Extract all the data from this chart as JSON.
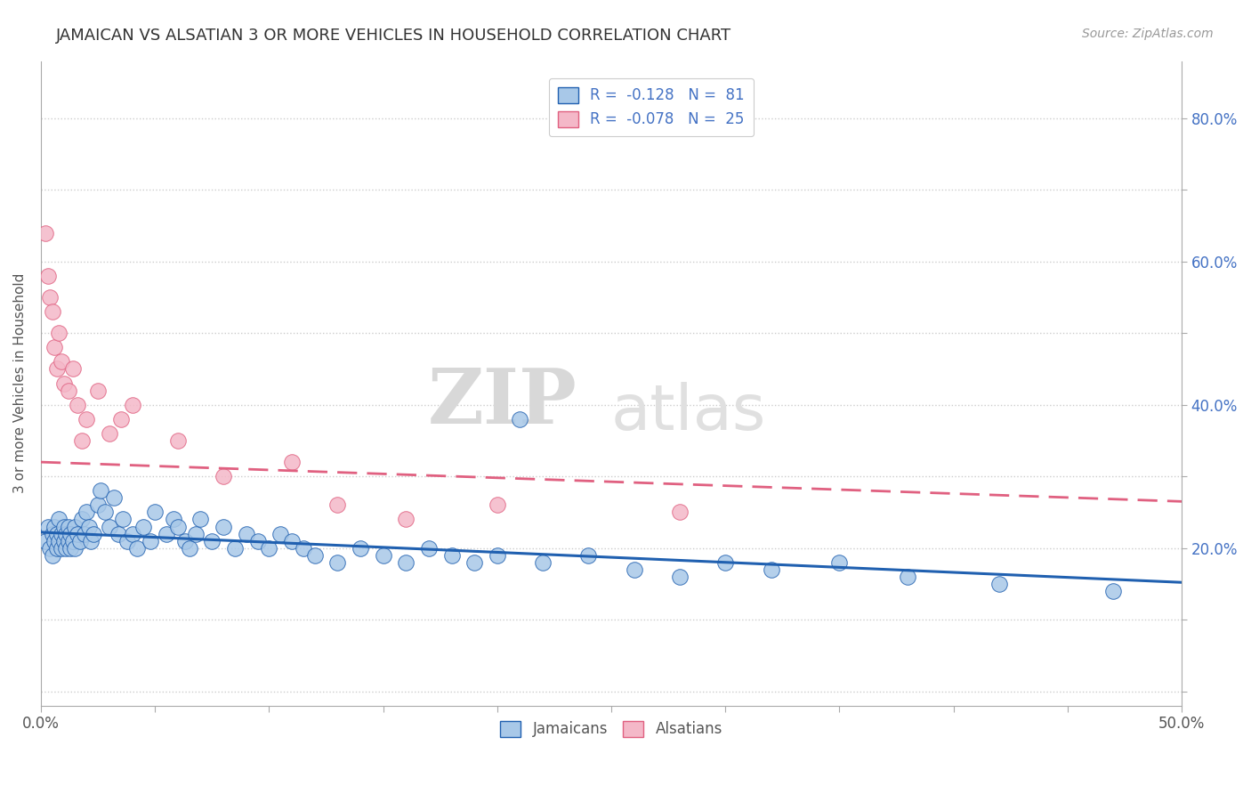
{
  "title": "JAMAICAN VS ALSATIAN 3 OR MORE VEHICLES IN HOUSEHOLD CORRELATION CHART",
  "source": "Source: ZipAtlas.com",
  "ylabel": "3 or more Vehicles in Household",
  "xlim": [
    0.0,
    0.5
  ],
  "ylim": [
    -0.02,
    0.88
  ],
  "xticks": [
    0.0,
    0.05,
    0.1,
    0.15,
    0.2,
    0.25,
    0.3,
    0.35,
    0.4,
    0.45,
    0.5
  ],
  "xticklabels": [
    "0.0%",
    "",
    "",
    "",
    "",
    "",
    "",
    "",
    "",
    "",
    "50.0%"
  ],
  "yticks": [
    0.0,
    0.1,
    0.2,
    0.3,
    0.4,
    0.5,
    0.6,
    0.7,
    0.8
  ],
  "yticklabels_right": [
    "",
    "",
    "20.0%",
    "",
    "40.0%",
    "",
    "60.0%",
    "",
    "80.0%"
  ],
  "blue_color": "#a8c8e8",
  "pink_color": "#f4b8c8",
  "blue_line_color": "#2060b0",
  "pink_line_color": "#e06080",
  "legend_text_color": "#4472c4",
  "watermark_zip": "ZIP",
  "watermark_atlas": "atlas",
  "jamaican_x": [
    0.002,
    0.003,
    0.004,
    0.005,
    0.005,
    0.006,
    0.006,
    0.007,
    0.007,
    0.008,
    0.008,
    0.009,
    0.009,
    0.01,
    0.01,
    0.011,
    0.011,
    0.012,
    0.012,
    0.013,
    0.013,
    0.014,
    0.015,
    0.015,
    0.016,
    0.017,
    0.018,
    0.019,
    0.02,
    0.021,
    0.022,
    0.023,
    0.025,
    0.026,
    0.028,
    0.03,
    0.032,
    0.034,
    0.036,
    0.038,
    0.04,
    0.042,
    0.045,
    0.048,
    0.05,
    0.055,
    0.058,
    0.06,
    0.063,
    0.065,
    0.068,
    0.07,
    0.075,
    0.08,
    0.085,
    0.09,
    0.095,
    0.1,
    0.105,
    0.11,
    0.115,
    0.12,
    0.13,
    0.14,
    0.15,
    0.16,
    0.17,
    0.18,
    0.19,
    0.2,
    0.21,
    0.22,
    0.24,
    0.26,
    0.28,
    0.3,
    0.32,
    0.35,
    0.38,
    0.42,
    0.47
  ],
  "jamaican_y": [
    0.21,
    0.23,
    0.2,
    0.22,
    0.19,
    0.21,
    0.23,
    0.2,
    0.22,
    0.21,
    0.24,
    0.2,
    0.22,
    0.23,
    0.21,
    0.2,
    0.22,
    0.21,
    0.23,
    0.2,
    0.22,
    0.21,
    0.23,
    0.2,
    0.22,
    0.21,
    0.24,
    0.22,
    0.25,
    0.23,
    0.21,
    0.22,
    0.26,
    0.28,
    0.25,
    0.23,
    0.27,
    0.22,
    0.24,
    0.21,
    0.22,
    0.2,
    0.23,
    0.21,
    0.25,
    0.22,
    0.24,
    0.23,
    0.21,
    0.2,
    0.22,
    0.24,
    0.21,
    0.23,
    0.2,
    0.22,
    0.21,
    0.2,
    0.22,
    0.21,
    0.2,
    0.19,
    0.18,
    0.2,
    0.19,
    0.18,
    0.2,
    0.19,
    0.18,
    0.19,
    0.38,
    0.18,
    0.19,
    0.17,
    0.16,
    0.18,
    0.17,
    0.18,
    0.16,
    0.15,
    0.14
  ],
  "alsatian_x": [
    0.002,
    0.003,
    0.004,
    0.005,
    0.006,
    0.007,
    0.008,
    0.009,
    0.01,
    0.012,
    0.014,
    0.016,
    0.018,
    0.02,
    0.025,
    0.03,
    0.035,
    0.04,
    0.06,
    0.08,
    0.11,
    0.13,
    0.16,
    0.2,
    0.28
  ],
  "alsatian_y": [
    0.64,
    0.58,
    0.55,
    0.53,
    0.48,
    0.45,
    0.5,
    0.46,
    0.43,
    0.42,
    0.45,
    0.4,
    0.35,
    0.38,
    0.42,
    0.36,
    0.38,
    0.4,
    0.35,
    0.3,
    0.32,
    0.26,
    0.24,
    0.26,
    0.25
  ]
}
